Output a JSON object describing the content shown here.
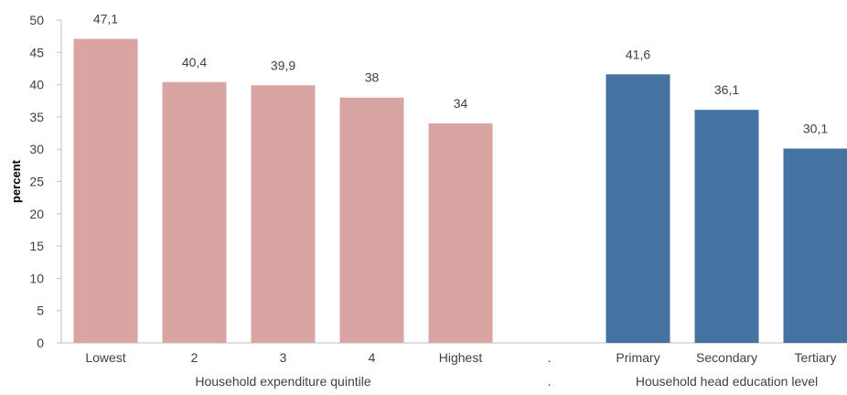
{
  "chart_data": {
    "type": "bar",
    "ylabel": "percent",
    "ylim": [
      0,
      50
    ],
    "yticks": [
      0,
      5,
      10,
      15,
      20,
      25,
      30,
      35,
      40,
      45,
      50
    ],
    "grid": false,
    "groups": [
      {
        "label": "Household expenditure quintile",
        "color": "#d9a5a2",
        "categories": [
          "Lowest",
          "2",
          "3",
          "4",
          "Highest"
        ],
        "values": [
          47.1,
          40.4,
          39.9,
          38,
          34
        ],
        "value_labels": [
          "47,1",
          "40,4",
          "39,9",
          "38",
          "34"
        ]
      },
      {
        "label": "Household head education level",
        "color": "#4472a1",
        "categories": [
          "Primary",
          "Secondary",
          "Tertiary"
        ],
        "values": [
          41.6,
          36.1,
          30.1
        ],
        "value_labels": [
          "41,6",
          "36,1",
          "30,1"
        ]
      }
    ],
    "separator": "."
  }
}
